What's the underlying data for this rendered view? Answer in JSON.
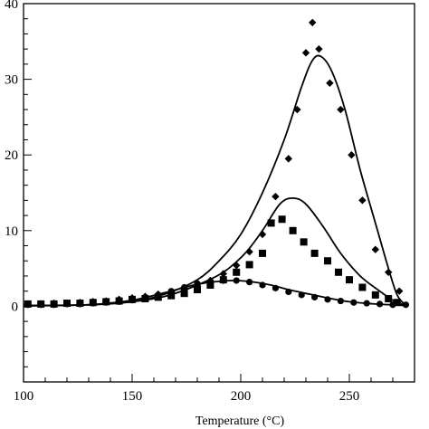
{
  "chart_data": {
    "type": "scatter",
    "title": "",
    "xlabel": "Temperature (°C)",
    "ylabel": "",
    "xlim": [
      100,
      280
    ],
    "ylim": [
      -10,
      40
    ],
    "grid": false,
    "legend": "none",
    "x_ticks": [
      100,
      150,
      200,
      250
    ],
    "y_ticks": [
      0,
      10,
      20,
      30,
      40
    ],
    "y_tick_labels": [
      "0",
      "10",
      "20",
      "30",
      "40"
    ],
    "series": [
      {
        "marker": "diamond",
        "points": [
          [
            102,
            0.3
          ],
          [
            108,
            0.3
          ],
          [
            114,
            0.4
          ],
          [
            120,
            0.4
          ],
          [
            126,
            0.5
          ],
          [
            132,
            0.6
          ],
          [
            138,
            0.7
          ],
          [
            144,
            0.9
          ],
          [
            150,
            1.1
          ],
          [
            156,
            1.3
          ],
          [
            162,
            1.6
          ],
          [
            168,
            1.9
          ],
          [
            174,
            2.3
          ],
          [
            180,
            2.8
          ],
          [
            186,
            3.4
          ],
          [
            192,
            4.3
          ],
          [
            198,
            5.4
          ],
          [
            204,
            7.2
          ],
          [
            210,
            9.5
          ],
          [
            216,
            14.5
          ],
          [
            222,
            19.5
          ],
          [
            226,
            26.0
          ],
          [
            230,
            33.5
          ],
          [
            233,
            37.5
          ],
          [
            236,
            34.0
          ],
          [
            241,
            29.5
          ],
          [
            246,
            26.0
          ],
          [
            251,
            20.0
          ],
          [
            256,
            14.0
          ],
          [
            262,
            7.5
          ],
          [
            268,
            4.5
          ],
          [
            273,
            2.0
          ]
        ],
        "color": "#000000"
      },
      {
        "marker": "square",
        "points": [
          [
            102,
            0.3
          ],
          [
            108,
            0.3
          ],
          [
            114,
            0.3
          ],
          [
            120,
            0.4
          ],
          [
            126,
            0.4
          ],
          [
            132,
            0.5
          ],
          [
            138,
            0.6
          ],
          [
            144,
            0.7
          ],
          [
            150,
            0.9
          ],
          [
            156,
            1.0
          ],
          [
            162,
            1.2
          ],
          [
            168,
            1.4
          ],
          [
            174,
            1.7
          ],
          [
            180,
            2.2
          ],
          [
            186,
            2.8
          ],
          [
            192,
            3.5
          ],
          [
            198,
            4.5
          ],
          [
            204,
            5.5
          ],
          [
            210,
            7.0
          ],
          [
            214,
            11.0
          ],
          [
            219,
            11.5
          ],
          [
            224,
            10.0
          ],
          [
            229,
            8.5
          ],
          [
            234,
            7.0
          ],
          [
            240,
            6.0
          ],
          [
            245,
            4.5
          ],
          [
            250,
            3.5
          ],
          [
            256,
            2.5
          ],
          [
            262,
            1.5
          ],
          [
            268,
            1.0
          ],
          [
            272,
            0.5
          ]
        ],
        "color": "#000000"
      },
      {
        "marker": "circle",
        "points": [
          [
            102,
            0.2
          ],
          [
            108,
            0.2
          ],
          [
            114,
            0.2
          ],
          [
            120,
            0.3
          ],
          [
            126,
            0.3
          ],
          [
            132,
            0.4
          ],
          [
            138,
            0.5
          ],
          [
            144,
            0.6
          ],
          [
            150,
            0.8
          ],
          [
            156,
            1.1
          ],
          [
            162,
            1.5
          ],
          [
            168,
            2.0
          ],
          [
            174,
            2.5
          ],
          [
            180,
            3.0
          ],
          [
            186,
            3.2
          ],
          [
            192,
            3.4
          ],
          [
            198,
            3.4
          ],
          [
            204,
            3.2
          ],
          [
            210,
            2.8
          ],
          [
            216,
            2.4
          ],
          [
            222,
            1.9
          ],
          [
            228,
            1.5
          ],
          [
            234,
            1.2
          ],
          [
            240,
            0.9
          ],
          [
            246,
            0.7
          ],
          [
            252,
            0.5
          ],
          [
            258,
            0.4
          ],
          [
            264,
            0.3
          ],
          [
            270,
            0.2
          ],
          [
            276,
            0.2
          ]
        ],
        "color": "#000000"
      }
    ],
    "fit_curves": [
      {
        "points": [
          [
            100,
            0.1
          ],
          [
            130,
            0.2
          ],
          [
            150,
            0.6
          ],
          [
            165,
            1.6
          ],
          [
            180,
            3.5
          ],
          [
            190,
            6.0
          ],
          [
            200,
            9.5
          ],
          [
            210,
            15.0
          ],
          [
            220,
            22.0
          ],
          [
            228,
            29.0
          ],
          [
            233,
            32.5
          ],
          [
            237,
            33.0
          ],
          [
            242,
            31.0
          ],
          [
            248,
            26.0
          ],
          [
            255,
            18.0
          ],
          [
            262,
            11.0
          ],
          [
            268,
            5.0
          ],
          [
            272,
            1.5
          ],
          [
            276,
            0.1
          ]
        ],
        "color": "#000000"
      },
      {
        "points": [
          [
            100,
            0.1
          ],
          [
            130,
            0.2
          ],
          [
            150,
            0.6
          ],
          [
            165,
            1.3
          ],
          [
            180,
            2.8
          ],
          [
            192,
            4.5
          ],
          [
            202,
            7.0
          ],
          [
            210,
            10.0
          ],
          [
            218,
            13.5
          ],
          [
            224,
            14.3
          ],
          [
            230,
            13.5
          ],
          [
            238,
            10.5
          ],
          [
            246,
            7.0
          ],
          [
            255,
            4.0
          ],
          [
            264,
            2.0
          ],
          [
            270,
            0.8
          ],
          [
            276,
            0.1
          ]
        ],
        "color": "#000000"
      },
      {
        "points": [
          [
            100,
            0.05
          ],
          [
            130,
            0.2
          ],
          [
            150,
            0.8
          ],
          [
            165,
            1.8
          ],
          [
            180,
            2.9
          ],
          [
            190,
            3.3
          ],
          [
            198,
            3.4
          ],
          [
            206,
            3.2
          ],
          [
            214,
            2.8
          ],
          [
            222,
            2.2
          ],
          [
            230,
            1.7
          ],
          [
            240,
            1.1
          ],
          [
            250,
            0.6
          ],
          [
            262,
            0.3
          ],
          [
            276,
            0.1
          ]
        ],
        "color": "#000000"
      }
    ]
  }
}
